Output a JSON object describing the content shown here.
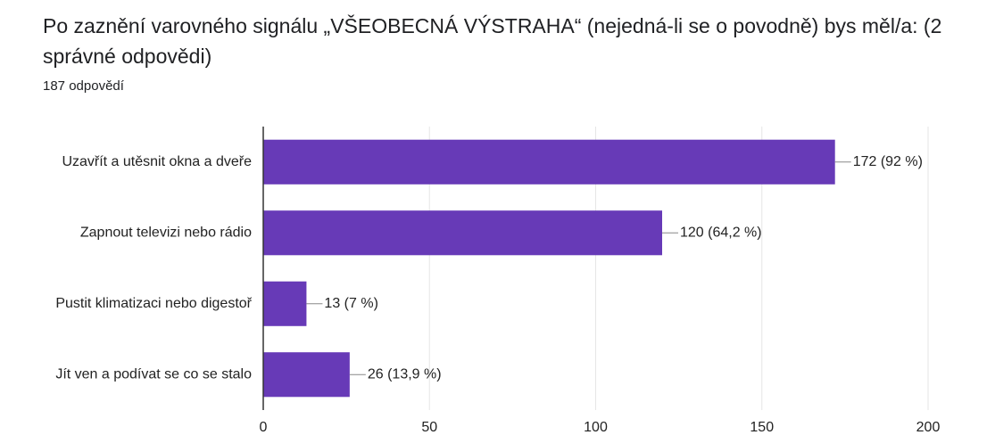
{
  "chart_data": {
    "type": "bar",
    "orientation": "horizontal",
    "title": "Po zaznění varovného signálu „VŠEOBECNÁ VÝSTRAHA“ (nejedná-li se o povodně) bys měl/a: (2 správné odpovědi)",
    "subtitle": "187 odpovědí",
    "categories": [
      "Uzavřít a utěsnit okna a dveře",
      "Zapnout televizi nebo rádio",
      "Pustit klimatizaci nebo digestoř",
      "Jít ven a podívat se co se stalo"
    ],
    "values": [
      172,
      120,
      13,
      26
    ],
    "value_labels": [
      "172 (92 %)",
      "120 (64,2 %)",
      "13 (7 %)",
      "26 (13,9 %)"
    ],
    "color": "#673ab7",
    "xlim": [
      0,
      200
    ],
    "xticks": [
      0,
      50,
      100,
      150,
      200
    ],
    "grid": true
  }
}
